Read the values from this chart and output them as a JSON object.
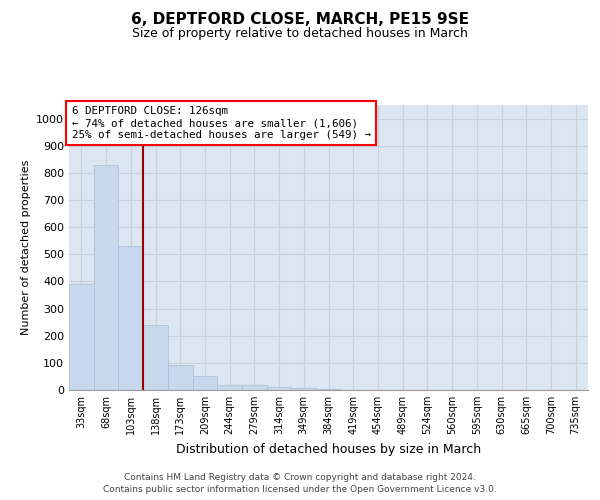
{
  "title": "6, DEPTFORD CLOSE, MARCH, PE15 9SE",
  "subtitle": "Size of property relative to detached houses in March",
  "xlabel": "Distribution of detached houses by size in March",
  "ylabel": "Number of detached properties",
  "bar_color": "#c8d8ec",
  "bar_edge_color": "#a8bcd8",
  "grid_color": "#c8d0dc",
  "background_color": "#dce6f0",
  "categories": [
    "33sqm",
    "68sqm",
    "103sqm",
    "138sqm",
    "173sqm",
    "209sqm",
    "244sqm",
    "279sqm",
    "314sqm",
    "349sqm",
    "384sqm",
    "419sqm",
    "454sqm",
    "489sqm",
    "524sqm",
    "560sqm",
    "595sqm",
    "630sqm",
    "665sqm",
    "700sqm",
    "735sqm"
  ],
  "values": [
    390,
    830,
    530,
    240,
    93,
    50,
    18,
    17,
    10,
    6,
    5,
    0,
    0,
    0,
    0,
    0,
    0,
    0,
    0,
    0,
    0
  ],
  "ylim": [
    0,
    1050
  ],
  "yticks": [
    0,
    100,
    200,
    300,
    400,
    500,
    600,
    700,
    800,
    900,
    1000
  ],
  "red_line_x": 2.5,
  "annotation_line1": "6 DEPTFORD CLOSE: 126sqm",
  "annotation_line2": "← 74% of detached houses are smaller (1,606)",
  "annotation_line3": "25% of semi-detached houses are larger (549) →",
  "footer_line1": "Contains HM Land Registry data © Crown copyright and database right 2024.",
  "footer_line2": "Contains public sector information licensed under the Open Government Licence v3.0.",
  "title_fontsize": 11,
  "subtitle_fontsize": 9,
  "ylabel_fontsize": 8,
  "xlabel_fontsize": 9,
  "tick_fontsize": 8,
  "xtick_fontsize": 7
}
